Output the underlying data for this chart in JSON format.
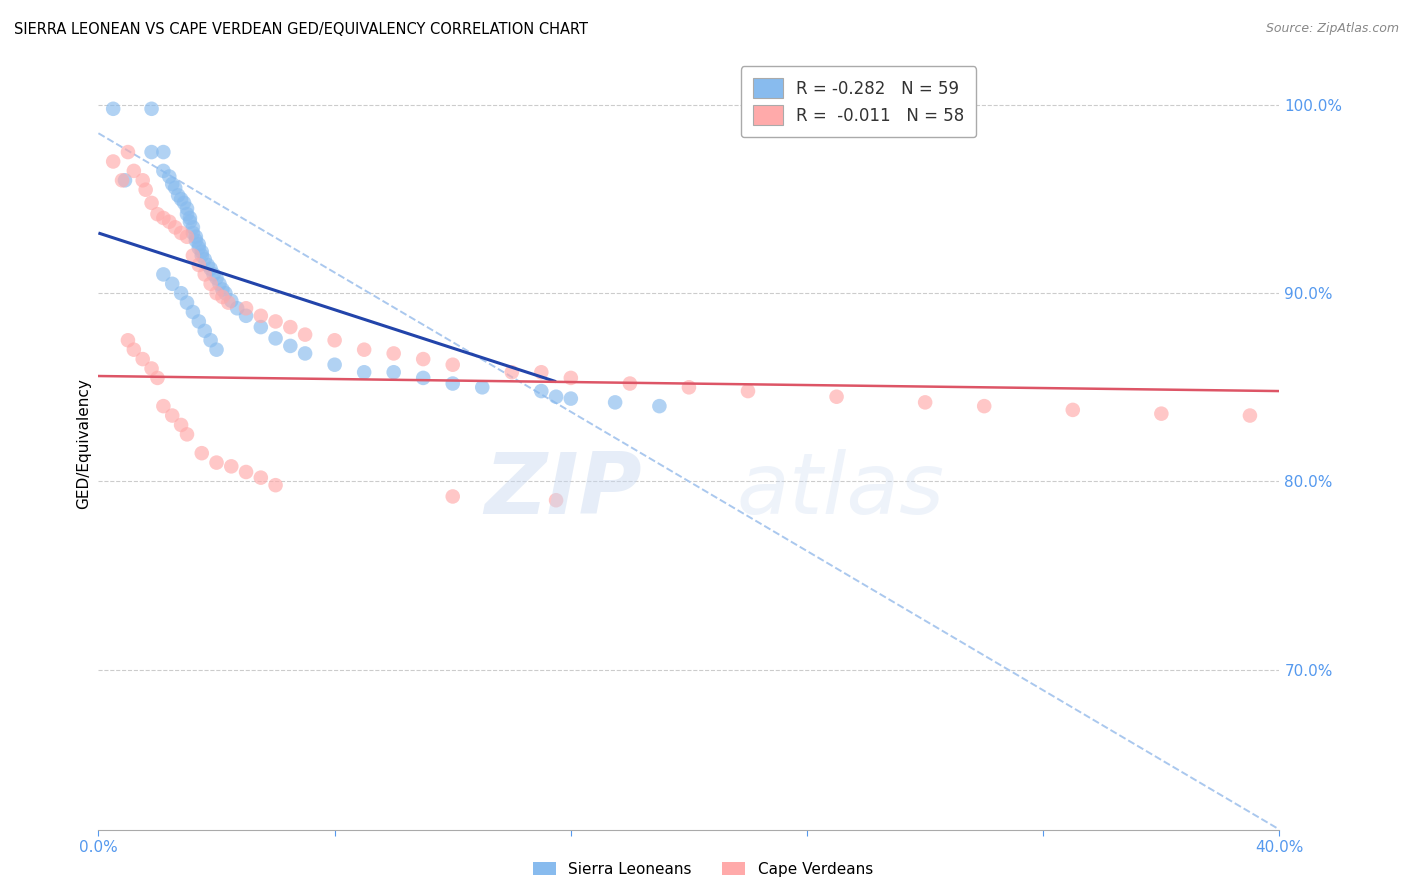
{
  "title": "SIERRA LEONEAN VS CAPE VERDEAN GED/EQUIVALENCY CORRELATION CHART",
  "source": "Source: ZipAtlas.com",
  "ylabel": "GED/Equivalency",
  "yticks": [
    1.0,
    0.9,
    0.8,
    0.7
  ],
  "ytick_labels": [
    "100.0%",
    "90.0%",
    "80.0%",
    "70.0%"
  ],
  "xmin": 0.0,
  "xmax": 0.4,
  "ymin": 0.615,
  "ymax": 1.025,
  "sierra_color": "#88bbee",
  "cape_color": "#ffaaaa",
  "sierra_label": "Sierra Leoneans",
  "cape_label": "Cape Verdeans",
  "blue_line_color": "#2244aa",
  "pink_line_color": "#dd5566",
  "dashed_line_color": "#aac8ee",
  "axis_color": "#5599ee",
  "tick_color": "#5599ee",
  "blue_line_x": [
    0.0,
    0.155
  ],
  "blue_line_y": [
    0.932,
    0.853
  ],
  "pink_line_x": [
    0.0,
    0.4
  ],
  "pink_line_y": [
    0.856,
    0.848
  ],
  "dashed_line_x": [
    0.0,
    0.4
  ],
  "dashed_line_y": [
    0.985,
    0.615
  ],
  "sierra_x": [
    0.005,
    0.009,
    0.018,
    0.018,
    0.022,
    0.022,
    0.024,
    0.025,
    0.026,
    0.027,
    0.028,
    0.029,
    0.03,
    0.03,
    0.031,
    0.031,
    0.032,
    0.032,
    0.033,
    0.033,
    0.034,
    0.034,
    0.035,
    0.035,
    0.036,
    0.037,
    0.038,
    0.039,
    0.04,
    0.041,
    0.042,
    0.043,
    0.045,
    0.047,
    0.05,
    0.055,
    0.06,
    0.065,
    0.07,
    0.08,
    0.09,
    0.1,
    0.11,
    0.12,
    0.13,
    0.15,
    0.155,
    0.16,
    0.175,
    0.19,
    0.022,
    0.025,
    0.028,
    0.03,
    0.032,
    0.034,
    0.036,
    0.038,
    0.04
  ],
  "sierra_y": [
    0.998,
    0.96,
    0.998,
    0.975,
    0.975,
    0.965,
    0.962,
    0.958,
    0.956,
    0.952,
    0.95,
    0.948,
    0.945,
    0.942,
    0.94,
    0.938,
    0.935,
    0.932,
    0.93,
    0.928,
    0.926,
    0.924,
    0.922,
    0.92,
    0.918,
    0.915,
    0.913,
    0.91,
    0.908,
    0.905,
    0.902,
    0.9,
    0.896,
    0.892,
    0.888,
    0.882,
    0.876,
    0.872,
    0.868,
    0.862,
    0.858,
    0.858,
    0.855,
    0.852,
    0.85,
    0.848,
    0.845,
    0.844,
    0.842,
    0.84,
    0.91,
    0.905,
    0.9,
    0.895,
    0.89,
    0.885,
    0.88,
    0.875,
    0.87
  ],
  "cape_x": [
    0.005,
    0.008,
    0.01,
    0.012,
    0.015,
    0.016,
    0.018,
    0.02,
    0.022,
    0.024,
    0.026,
    0.028,
    0.03,
    0.032,
    0.034,
    0.036,
    0.038,
    0.04,
    0.042,
    0.044,
    0.05,
    0.055,
    0.06,
    0.065,
    0.07,
    0.08,
    0.09,
    0.1,
    0.11,
    0.12,
    0.14,
    0.15,
    0.16,
    0.18,
    0.2,
    0.22,
    0.25,
    0.28,
    0.3,
    0.33,
    0.36,
    0.39,
    0.01,
    0.012,
    0.015,
    0.018,
    0.02,
    0.022,
    0.025,
    0.028,
    0.03,
    0.035,
    0.04,
    0.045,
    0.05,
    0.055,
    0.06,
    0.12,
    0.155
  ],
  "cape_y": [
    0.97,
    0.96,
    0.975,
    0.965,
    0.96,
    0.955,
    0.948,
    0.942,
    0.94,
    0.938,
    0.935,
    0.932,
    0.93,
    0.92,
    0.915,
    0.91,
    0.905,
    0.9,
    0.898,
    0.895,
    0.892,
    0.888,
    0.885,
    0.882,
    0.878,
    0.875,
    0.87,
    0.868,
    0.865,
    0.862,
    0.858,
    0.858,
    0.855,
    0.852,
    0.85,
    0.848,
    0.845,
    0.842,
    0.84,
    0.838,
    0.836,
    0.835,
    0.875,
    0.87,
    0.865,
    0.86,
    0.855,
    0.84,
    0.835,
    0.83,
    0.825,
    0.815,
    0.81,
    0.808,
    0.805,
    0.802,
    0.798,
    0.792,
    0.79
  ]
}
